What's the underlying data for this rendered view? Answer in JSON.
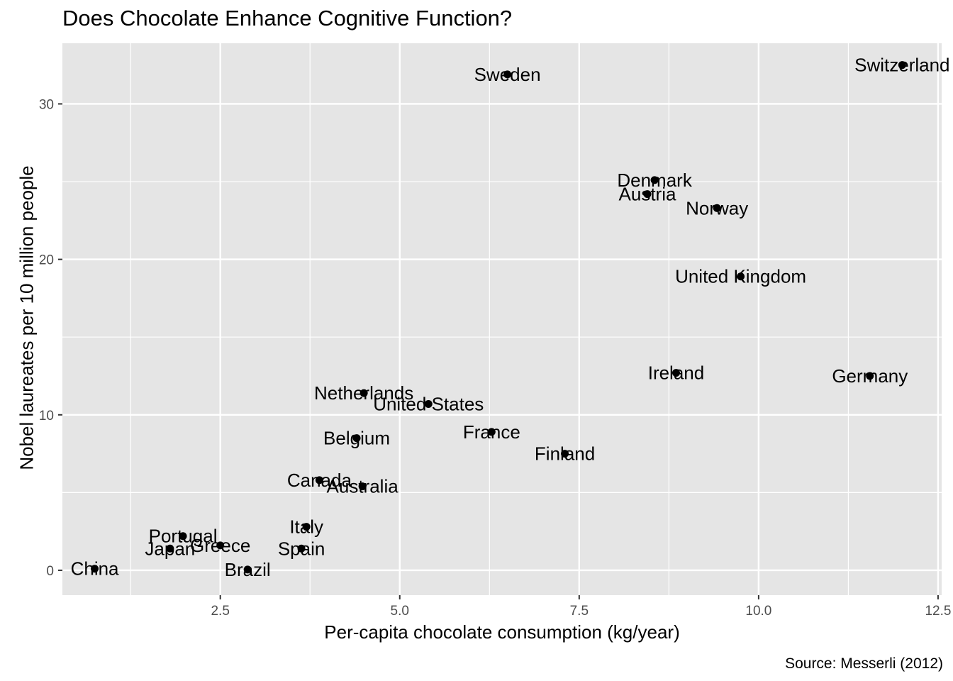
{
  "chart_data": {
    "type": "scatter",
    "title": "Does Chocolate Enhance Cognitive Function?",
    "xlabel": "Per-capita chocolate consumption (kg/year)",
    "ylabel": "Nobel laureates per 10 million people",
    "caption": "Source: Messerli (2012)",
    "xlim": [
      0.3,
      12.55
    ],
    "ylim": [
      -1.6,
      33.9
    ],
    "x_ticks": [
      2.5,
      5.0,
      7.5,
      10.0,
      12.5
    ],
    "x_tick_labels": [
      "2.5",
      "5.0",
      "7.5",
      "10.0",
      "12.5"
    ],
    "y_ticks": [
      0,
      10,
      20,
      30
    ],
    "y_tick_labels": [
      "0",
      "10",
      "20",
      "30"
    ],
    "grid": true,
    "background": "#e5e5e5",
    "gridline_color": "#ffffff",
    "point_color": "#000000",
    "points": [
      {
        "label": "Switzerland",
        "x": 12.0,
        "y": 32.5
      },
      {
        "label": "Sweden",
        "x": 6.5,
        "y": 31.9
      },
      {
        "label": "Denmark",
        "x": 8.55,
        "y": 25.1
      },
      {
        "label": "Austria",
        "x": 8.45,
        "y": 24.2
      },
      {
        "label": "Norway",
        "x": 9.42,
        "y": 23.3
      },
      {
        "label": "United Kingdom",
        "x": 9.75,
        "y": 18.9
      },
      {
        "label": "Ireland",
        "x": 8.85,
        "y": 12.7
      },
      {
        "label": "Germany",
        "x": 11.55,
        "y": 12.5
      },
      {
        "label": "Netherlands",
        "x": 4.5,
        "y": 11.4
      },
      {
        "label": "United States",
        "x": 5.4,
        "y": 10.7
      },
      {
        "label": "France",
        "x": 6.28,
        "y": 8.9
      },
      {
        "label": "Belgium",
        "x": 4.4,
        "y": 8.5
      },
      {
        "label": "Finland",
        "x": 7.3,
        "y": 7.5
      },
      {
        "label": "Canada",
        "x": 3.88,
        "y": 5.8
      },
      {
        "label": "Australia",
        "x": 4.48,
        "y": 5.4
      },
      {
        "label": "Italy",
        "x": 3.7,
        "y": 2.8
      },
      {
        "label": "Portugal",
        "x": 1.98,
        "y": 2.2
      },
      {
        "label": "Greece",
        "x": 2.5,
        "y": 1.6
      },
      {
        "label": "Spain",
        "x": 3.63,
        "y": 1.4
      },
      {
        "label": "Japan",
        "x": 1.8,
        "y": 1.4
      },
      {
        "label": "China",
        "x": 0.75,
        "y": 0.1
      },
      {
        "label": "Brazil",
        "x": 2.88,
        "y": 0.05
      }
    ]
  }
}
